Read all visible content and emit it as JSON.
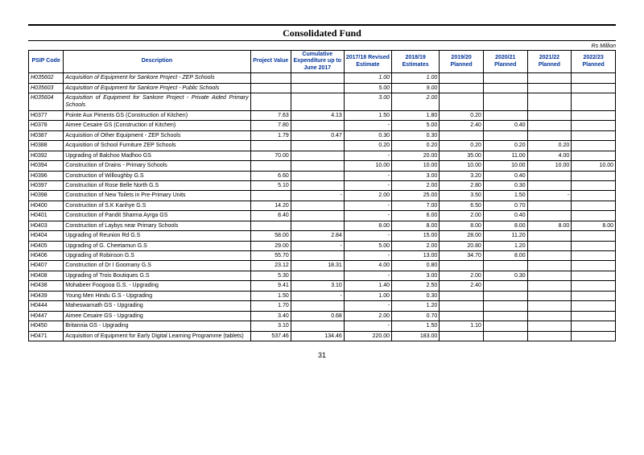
{
  "header": {
    "title": "Consolidated Fund",
    "unit": "Rs Million"
  },
  "colors": {
    "header_text": "#003399",
    "border": "#000000",
    "background": "#ffffff"
  },
  "table": {
    "columns": [
      "PSIP Code",
      "Description",
      "Project Value",
      "Cumulative Expenditure up to June 2017",
      "2017/18 Revised Estimate",
      "2018/19 Estimates",
      "2019/20 Planned",
      "2020/21 Planned",
      "2021/22 Planned",
      "2022/23 Planned"
    ],
    "rows": [
      {
        "italic": true,
        "code": "H035602",
        "desc": "Acquisition of Equipment for Sankore Project - ZEP Schools",
        "v": [
          "",
          "",
          "1.00",
          "1.00",
          "",
          "",
          "",
          ""
        ]
      },
      {
        "italic": true,
        "code": "H035603",
        "desc": "Acquisition of Equipment for Sankore Project - Public Schools",
        "v": [
          "",
          "",
          "5.00",
          "9.00",
          "",
          "",
          "",
          ""
        ]
      },
      {
        "italic": true,
        "code": "H035604",
        "desc": "Acquisition of Equipment for Sankore Project - Private Aided Primary Schools",
        "v": [
          "",
          "",
          "3.00",
          "2.00",
          "",
          "",
          "",
          ""
        ]
      },
      {
        "code": "H0377",
        "desc": "Pointe Aux Piments GS (Construction of Kitchen)",
        "v": [
          "7.63",
          "4.13",
          "1.50",
          "1.80",
          "0.20",
          "",
          "",
          ""
        ]
      },
      {
        "code": "H0378",
        "desc": "Aimee Cesaire GS (Construction of Kitchen)",
        "v": [
          "7.80",
          "",
          "-",
          "5.00",
          "2.40",
          "0.40",
          "",
          ""
        ]
      },
      {
        "code": "H0387",
        "desc": "Acquisition of Other Equipment - ZEP Schools",
        "v": [
          "1.79",
          "0.47",
          "0.30",
          "0.30",
          "",
          "",
          "",
          ""
        ]
      },
      {
        "code": "H0388",
        "desc": "Acquisition of School Furniture ZEP Schools",
        "v": [
          "",
          "",
          "0.20",
          "0.20",
          "0.20",
          "0.20",
          "0.20",
          ""
        ]
      },
      {
        "code": "H0392",
        "desc": "Upgrading of Balchoo Madhoo GS",
        "v": [
          "70.00",
          "",
          "-",
          "20.00",
          "35.00",
          "11.00",
          "4.00",
          ""
        ]
      },
      {
        "code": "H0394",
        "desc": "Construction of Drains - Primary Schools",
        "v": [
          "",
          "",
          "10.00",
          "10.00",
          "10.00",
          "10.00",
          "10.00",
          "10.00"
        ]
      },
      {
        "code": "H0396",
        "desc": "Construction of Willoughby G.S",
        "v": [
          "6.60",
          "",
          "-",
          "3.00",
          "3.20",
          "0.40",
          "",
          ""
        ]
      },
      {
        "code": "H0397",
        "desc": "Construction of Rose Belle North G.S",
        "v": [
          "5.10",
          "",
          "-",
          "2.00",
          "2.80",
          "0.30",
          "",
          ""
        ]
      },
      {
        "code": "H0398",
        "desc": "Construction of New Toilets in Pre-Primary Units",
        "v": [
          "",
          "-",
          "2.00",
          "25.00",
          "3.50",
          "1.50",
          "-",
          ""
        ]
      },
      {
        "code": "H0400",
        "desc": "Construction of S.K Kanhye G.S",
        "v": [
          "14.20",
          "",
          "-",
          "7.00",
          "6.50",
          "0.70",
          "",
          ""
        ]
      },
      {
        "code": "H0401",
        "desc": "Construction of Pandit Sharma Ayrga GS",
        "v": [
          "8.40",
          "",
          "-",
          "6.00",
          "2.00",
          "0.40",
          "",
          ""
        ]
      },
      {
        "code": "H0403",
        "desc": "Construction of Laybys near Primary Schools",
        "v": [
          "",
          "",
          "8.00",
          "8.00",
          "8.00",
          "8.00",
          "8.00",
          "8.00"
        ]
      },
      {
        "code": "H0404",
        "desc": "Upgrading of Reunion Rd G.S",
        "v": [
          "58.00",
          "2.84",
          "-",
          "15.00",
          "28.00",
          "11.20",
          "",
          ""
        ]
      },
      {
        "code": "H0405",
        "desc": "Upgrading of G. Cheetamun G.S",
        "v": [
          "29.00",
          "-",
          "5.00",
          "2.00",
          "20.80",
          "1.20",
          "",
          ""
        ]
      },
      {
        "code": "H0406",
        "desc": "Upgrading of Robinson G.S",
        "v": [
          "55.70",
          "",
          "-",
          "13.00",
          "34.70",
          "8.00",
          "",
          ""
        ]
      },
      {
        "code": "H0407",
        "desc": "Construction of Dr I Goomany G.S",
        "v": [
          "23.12",
          "18.31",
          "4.00",
          "0.80",
          "",
          "",
          "",
          ""
        ]
      },
      {
        "code": "H0408",
        "desc": "Upgrading of Trois Boutiques G.S",
        "v": [
          "5.30",
          "",
          "-",
          "3.00",
          "2.00",
          "0.30",
          "",
          ""
        ]
      },
      {
        "code": "H0438",
        "desc": "Mohabeer Foogooa G.S. - Upgrading",
        "v": [
          "9.41",
          "3.10",
          "1.40",
          "2.50",
          "2.40",
          "",
          "",
          ""
        ]
      },
      {
        "code": "H0439",
        "desc": "Young Men Hindu G.S - Upgrading",
        "v": [
          "1.50",
          "-",
          "1.00",
          "0.30",
          "",
          "",
          "",
          ""
        ]
      },
      {
        "code": "H0444",
        "desc": "Maheswarnath GS - Upgrading",
        "v": [
          "1.70",
          "",
          "-",
          "1.20",
          "",
          "",
          "",
          ""
        ]
      },
      {
        "code": "H0447",
        "desc": "Aimee Cesaire GS - Upgrading",
        "v": [
          "3.40",
          "0.68",
          "2.00",
          "0.70",
          "",
          "",
          "",
          ""
        ]
      },
      {
        "code": "H0450",
        "desc": "Britannia GS - Upgrading",
        "v": [
          "3.10",
          "",
          "-",
          "1.50",
          "1.10",
          "",
          "",
          ""
        ]
      },
      {
        "code": "H0471",
        "desc": "Acquisition of Equipment for Early Digital Learning Programme (tablets)",
        "v": [
          "537.46",
          "134.46",
          "220.00",
          "183.00",
          "",
          "",
          "",
          ""
        ]
      }
    ]
  },
  "footer": {
    "page": "31"
  }
}
